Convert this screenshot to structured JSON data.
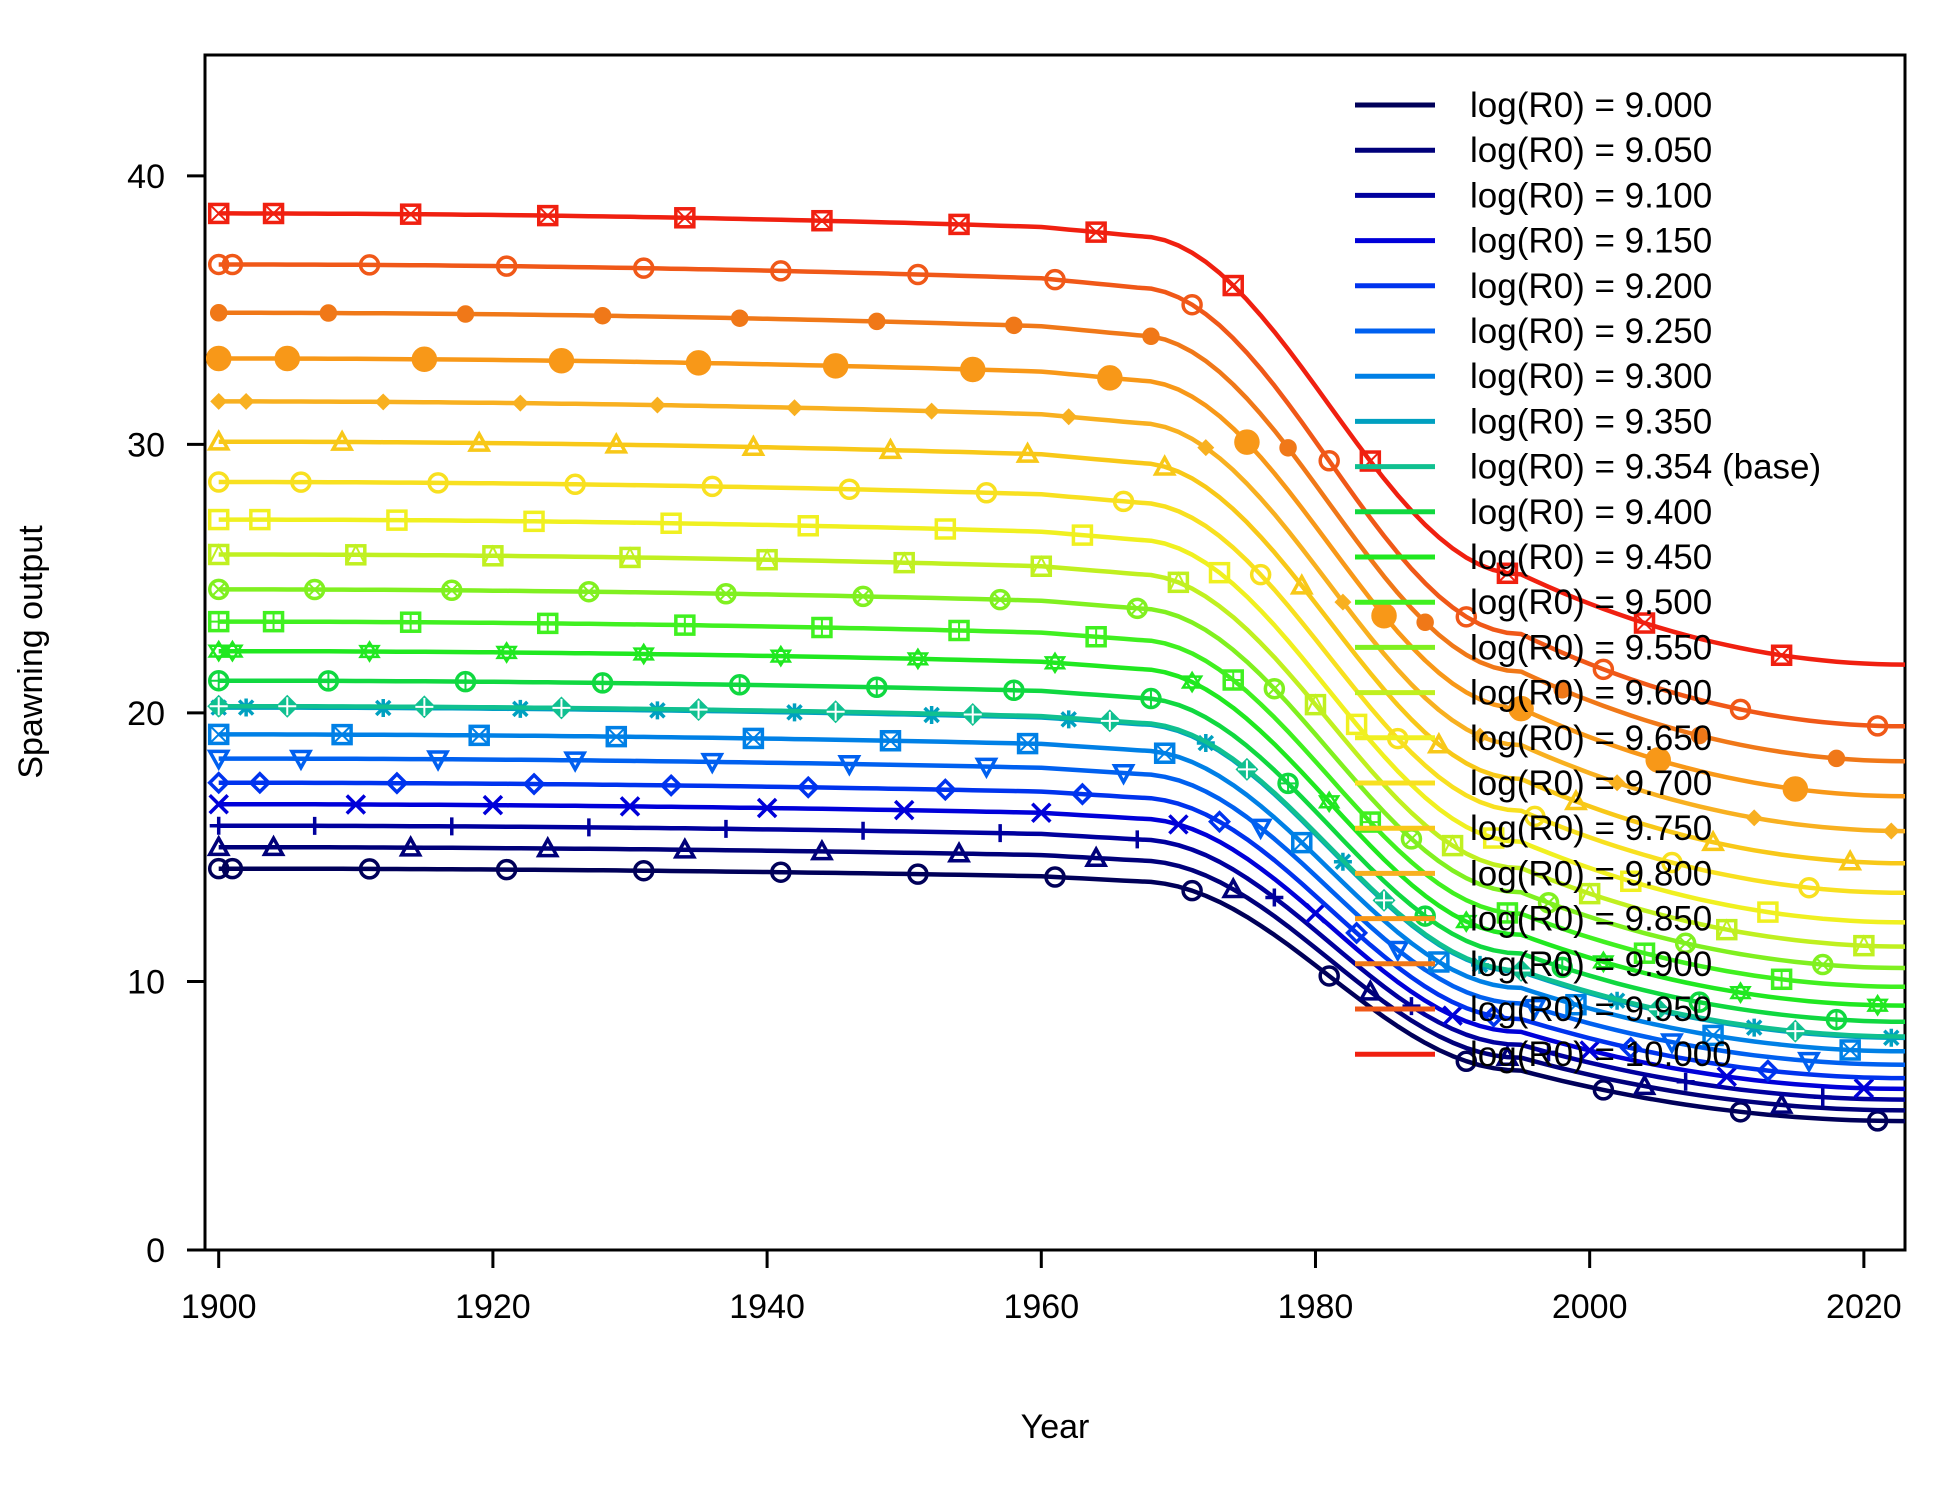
{
  "chart_data": {
    "type": "line",
    "title": "",
    "xlabel": "Year",
    "ylabel": "Spawning output",
    "xlim": [
      1899,
      2023
    ],
    "ylim": [
      0,
      44.5
    ],
    "x_ticks": [
      1900,
      1920,
      1940,
      1960,
      1980,
      2000,
      2020
    ],
    "y_ticks": [
      0,
      10,
      20,
      30,
      40
    ],
    "grid": false,
    "legend_position": "top-right",
    "series": [
      {
        "name": "log(R0) = 9.000",
        "color": "#000059",
        "marker": "circle",
        "start": 14.2,
        "end": 4.8
      },
      {
        "name": "log(R0) = 9.050",
        "color": "#00007a",
        "marker": "triangle",
        "start": 15.0,
        "end": 5.2
      },
      {
        "name": "log(R0) = 9.100",
        "color": "#00009e",
        "marker": "plus",
        "start": 15.8,
        "end": 5.6
      },
      {
        "name": "log(R0) = 9.150",
        "color": "#0000d9",
        "marker": "x",
        "start": 16.6,
        "end": 6.0
      },
      {
        "name": "log(R0) = 9.200",
        "color": "#0033ee",
        "marker": "diamond",
        "start": 17.4,
        "end": 6.4
      },
      {
        "name": "log(R0) = 9.250",
        "color": "#0060f0",
        "marker": "triangle-down",
        "start": 18.3,
        "end": 6.9
      },
      {
        "name": "log(R0) = 9.300",
        "color": "#0080e6",
        "marker": "square-x",
        "start": 19.2,
        "end": 7.4
      },
      {
        "name": "log(R0) = 9.350",
        "color": "#00a0c0",
        "marker": "asterisk",
        "start": 20.2,
        "end": 7.9
      },
      {
        "name": "log(R0) = 9.354 (base)",
        "color": "#10c090",
        "marker": "diamond-plus",
        "start": 20.25,
        "end": 7.95
      },
      {
        "name": "log(R0) = 9.400",
        "color": "#10d840",
        "marker": "circle-plus",
        "start": 21.2,
        "end": 8.5
      },
      {
        "name": "log(R0) = 9.450",
        "color": "#20e820",
        "marker": "star",
        "start": 22.3,
        "end": 9.1
      },
      {
        "name": "log(R0) = 9.500",
        "color": "#40f020",
        "marker": "square-plus",
        "start": 23.4,
        "end": 9.8
      },
      {
        "name": "log(R0) = 9.550",
        "color": "#80f020",
        "marker": "circle-x",
        "start": 24.6,
        "end": 10.5
      },
      {
        "name": "log(R0) = 9.600",
        "color": "#c0f020",
        "marker": "square-triangle",
        "start": 25.9,
        "end": 11.3
      },
      {
        "name": "log(R0) = 9.650",
        "color": "#f0f020",
        "marker": "square",
        "start": 27.2,
        "end": 12.2
      },
      {
        "name": "log(R0) = 9.700",
        "color": "#f8e020",
        "marker": "circle",
        "start": 28.6,
        "end": 13.3
      },
      {
        "name": "log(R0) = 9.750",
        "color": "#f8c818",
        "marker": "triangle",
        "start": 30.1,
        "end": 14.4
      },
      {
        "name": "log(R0) = 9.800",
        "color": "#f8b020",
        "marker": "small-diamond",
        "start": 31.6,
        "end": 15.6
      },
      {
        "name": "log(R0) = 9.850",
        "color": "#f89818",
        "marker": "big-circle",
        "start": 33.2,
        "end": 16.9
      },
      {
        "name": "log(R0) = 9.900",
        "color": "#f07818",
        "marker": "dot",
        "start": 34.9,
        "end": 18.2
      },
      {
        "name": "log(R0) = 9.950",
        "color": "#f05818",
        "marker": "circle",
        "start": 36.7,
        "end": 19.5
      },
      {
        "name": "log(R0) = 10.000",
        "color": "#f02010",
        "marker": "square-x",
        "start": 38.6,
        "end": 21.8
      }
    ]
  }
}
